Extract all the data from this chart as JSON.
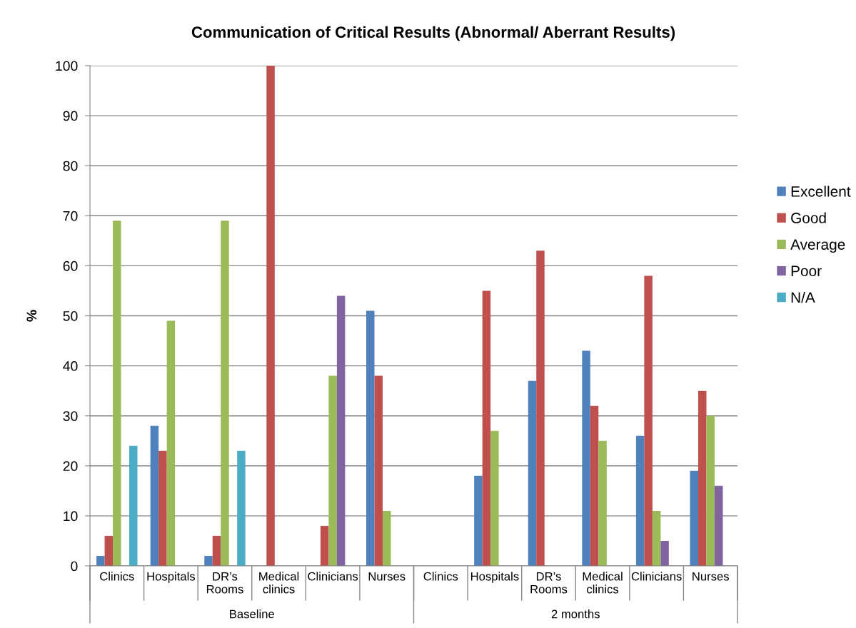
{
  "chart_data": {
    "type": "bar",
    "title": "Communication of Critical Results (Abnormal/ Aberrant Results)",
    "ylabel": "%",
    "categories": [
      "Clinics",
      "Hospitals",
      "DR’s Rooms",
      "Medical clinics",
      "Clinicians",
      "Nurses",
      "Clinics",
      "Hospitals",
      "DR’s Rooms",
      "Medical clinics",
      "Clinicians",
      "Nurses"
    ],
    "annotations": [
      "Baseline",
      "2 months"
    ],
    "series": [
      {
        "name": "Excellent",
        "color": "#4f81bd",
        "values": [
          2,
          28,
          2,
          null,
          null,
          51,
          null,
          18,
          37,
          43,
          26,
          19
        ]
      },
      {
        "name": "Good",
        "color": "#c0504d",
        "values": [
          6,
          23,
          6,
          100,
          8,
          38,
          null,
          55,
          63,
          32,
          58,
          35
        ]
      },
      {
        "name": "Average",
        "color": "#9bbb59",
        "values": [
          69,
          49,
          69,
          null,
          38,
          11,
          null,
          27,
          null,
          25,
          11,
          30
        ]
      },
      {
        "name": "Poor",
        "color": "#8064a2",
        "values": [
          null,
          null,
          null,
          null,
          54,
          null,
          null,
          null,
          null,
          null,
          5,
          16
        ]
      },
      {
        "name": "N/A",
        "color": "#4bacc6",
        "values": [
          24,
          null,
          23,
          null,
          null,
          null,
          null,
          null,
          null,
          null,
          null,
          null
        ]
      }
    ],
    "ylim": [
      0,
      100
    ],
    "yticks": [
      0,
      10,
      20,
      30,
      40,
      50,
      60,
      70,
      80,
      90,
      100
    ],
    "grid": "y",
    "legend": "right"
  }
}
